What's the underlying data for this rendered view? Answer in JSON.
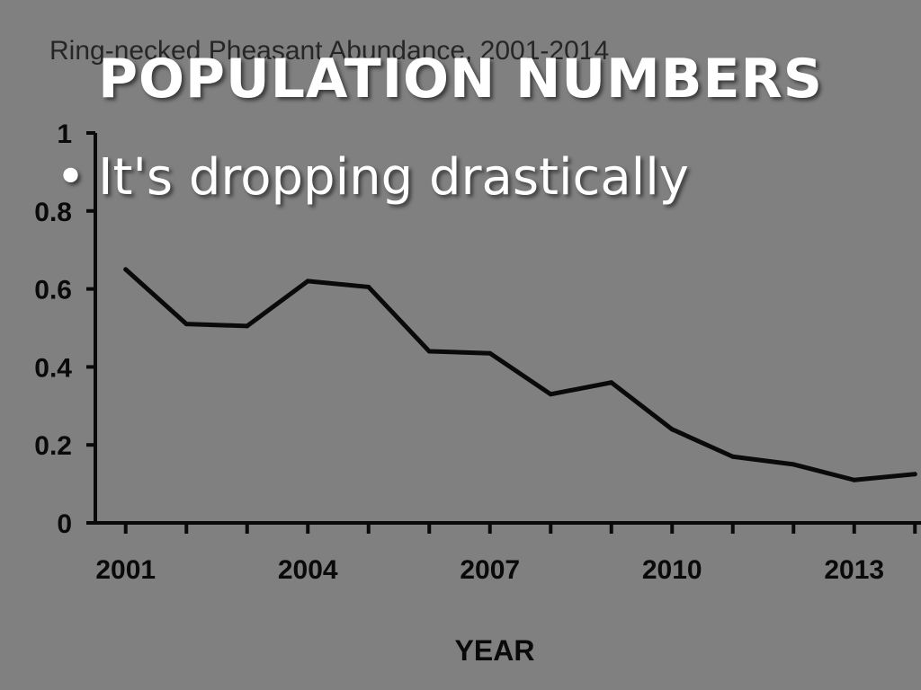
{
  "slide": {
    "heading": "POPULATION NUMBERS",
    "bullet_marker": "•",
    "bullet": "It's dropping drastically"
  },
  "colors": {
    "background": "#808080",
    "line": "#0a0a0a",
    "slide_text": "#ffffff",
    "chart_title": "#262626"
  },
  "chart_data": {
    "type": "line",
    "title": "Ring-necked Pheasant Abundance, 2001-2014",
    "xlabel": "YEAR",
    "ylabel": "",
    "x": [
      2001,
      2002,
      2003,
      2004,
      2005,
      2006,
      2007,
      2008,
      2009,
      2010,
      2011,
      2012,
      2013,
      2014
    ],
    "series": [
      {
        "values": [
          0.65,
          0.51,
          0.505,
          0.62,
          0.605,
          0.44,
          0.435,
          0.33,
          0.36,
          0.24,
          0.17,
          0.15,
          0.11,
          0.125
        ]
      }
    ],
    "xticks": [
      2001,
      2004,
      2007,
      2010,
      2013
    ],
    "xlim": [
      2000.5,
      2014.1
    ],
    "ylim": [
      0,
      1
    ],
    "yticks": [
      "0",
      "0.2",
      "0.4",
      "0.6",
      "0.8",
      "1"
    ],
    "grid": false,
    "legend": "none"
  }
}
